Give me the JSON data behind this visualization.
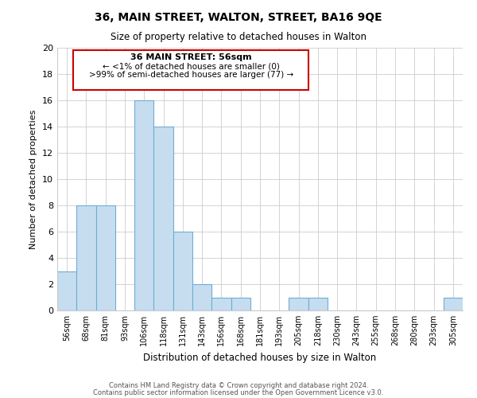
{
  "title": "36, MAIN STREET, WALTON, STREET, BA16 9QE",
  "subtitle": "Size of property relative to detached houses in Walton",
  "xlabel": "Distribution of detached houses by size in Walton",
  "ylabel": "Number of detached properties",
  "bar_color": "#c6ddf0",
  "bar_edge_color": "#6eadd4",
  "categories": [
    "56sqm",
    "68sqm",
    "81sqm",
    "93sqm",
    "106sqm",
    "118sqm",
    "131sqm",
    "143sqm",
    "156sqm",
    "168sqm",
    "181sqm",
    "193sqm",
    "205sqm",
    "218sqm",
    "230sqm",
    "243sqm",
    "255sqm",
    "268sqm",
    "280sqm",
    "293sqm",
    "305sqm"
  ],
  "values": [
    3,
    8,
    8,
    0,
    16,
    14,
    6,
    2,
    1,
    1,
    0,
    0,
    1,
    1,
    0,
    0,
    0,
    0,
    0,
    0,
    1
  ],
  "ylim": [
    0,
    20
  ],
  "yticks": [
    0,
    2,
    4,
    6,
    8,
    10,
    12,
    14,
    16,
    18,
    20
  ],
  "annotation_title": "36 MAIN STREET: 56sqm",
  "annotation_line1": "← <1% of detached houses are smaller (0)",
  "annotation_line2": ">99% of semi-detached houses are larger (77) →",
  "annotation_box_color": "#ffffff",
  "annotation_box_edge": "#cc0000",
  "footer_line1": "Contains HM Land Registry data © Crown copyright and database right 2024.",
  "footer_line2": "Contains public sector information licensed under the Open Government Licence v3.0.",
  "background_color": "#ffffff",
  "grid_color": "#cccccc"
}
